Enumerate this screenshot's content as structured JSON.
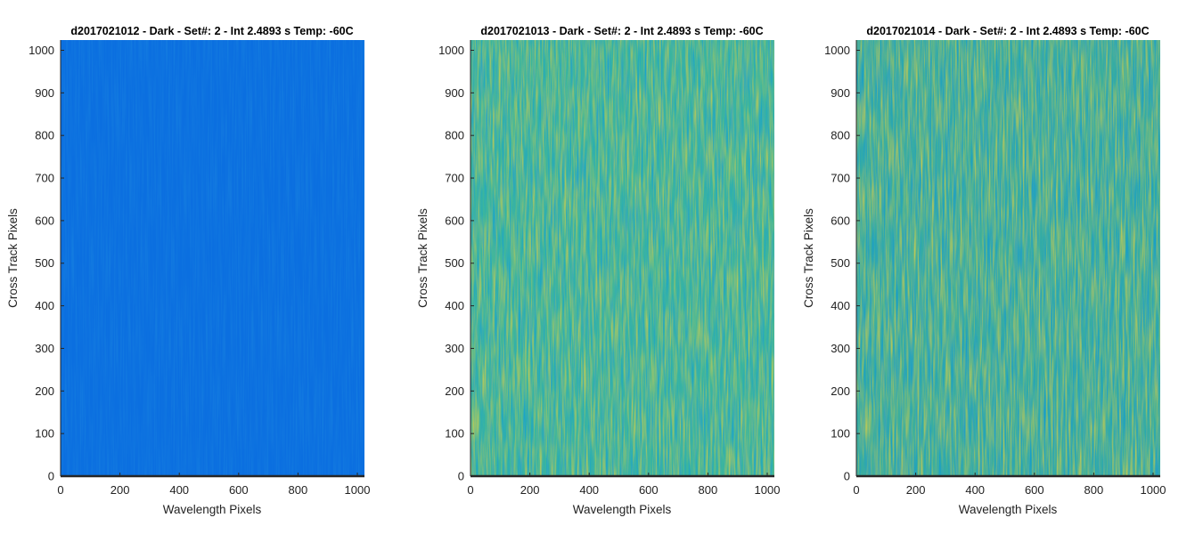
{
  "chart_data": [
    {
      "type": "heatmap",
      "title": "d2017021012 - Dark - Set#: 2 - Int 2.4893 s Temp: -60C",
      "xlabel": "Wavelength Pixels",
      "ylabel": "Cross Track Pixels",
      "xlim": [
        0,
        1024
      ],
      "ylim": [
        0,
        1024
      ],
      "xticks": [
        0,
        200,
        400,
        600,
        800,
        1000
      ],
      "yticks": [
        0,
        100,
        200,
        300,
        400,
        500,
        600,
        700,
        800,
        900,
        1000
      ],
      "grid": false,
      "colormap": [
        "#0a6ad8",
        "#1a80d4",
        "#1aa6c8",
        "#33b6a8",
        "#6fbf7e",
        "#b3c35c"
      ],
      "base_color": "#0b6fe0",
      "appearance": "uniform blue with faint vertical streaks"
    },
    {
      "type": "heatmap",
      "title": "d2017021013 - Dark - Set#: 2 - Int 2.4893 s Temp: -60C",
      "xlabel": "Wavelength Pixels",
      "ylabel": "Cross Track Pixels",
      "xlim": [
        0,
        1024
      ],
      "ylim": [
        0,
        1024
      ],
      "xticks": [
        0,
        200,
        400,
        600,
        800,
        1000
      ],
      "yticks": [
        0,
        100,
        200,
        300,
        400,
        500,
        600,
        700,
        800,
        900,
        1000
      ],
      "grid": false,
      "colormap": [
        "#0a6ad8",
        "#1a80d4",
        "#1aa6c8",
        "#33b6a8",
        "#6fbf7e",
        "#b3c35c"
      ],
      "base_color": "#3bb59e",
      "appearance": "teal-green noise with yellow-green vertical streaks"
    },
    {
      "type": "heatmap",
      "title": "d2017021014 - Dark - Set#: 2 - Int 2.4893 s Temp: -60C",
      "xlabel": "Wavelength Pixels",
      "ylabel": "Cross Track Pixels",
      "xlim": [
        0,
        1024
      ],
      "ylim": [
        0,
        1024
      ],
      "xticks": [
        0,
        200,
        400,
        600,
        800,
        1000
      ],
      "yticks": [
        0,
        100,
        200,
        300,
        400,
        500,
        600,
        700,
        800,
        900,
        1000
      ],
      "grid": false,
      "colormap": [
        "#0a6ad8",
        "#1a80d4",
        "#1aa6c8",
        "#33b6a8",
        "#6fbf7e",
        "#b3c35c"
      ],
      "base_color": "#3aae9e",
      "appearance": "teal-green noise with yellow-green vertical streaks"
    }
  ]
}
